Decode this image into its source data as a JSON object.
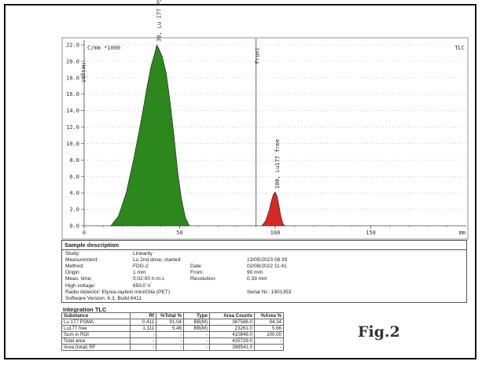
{
  "chart_data": {
    "type": "area",
    "y_unit_label": "C/mm *1000",
    "y_axis_label": "Height",
    "top_right_label": "TLC",
    "x_unit": "mm",
    "xlim": [
      0,
      200
    ],
    "ylim": [
      0,
      22
    ],
    "x_ticks": [
      0,
      50,
      100,
      150
    ],
    "y_ticks": [
      "0.0",
      "2.0",
      "4.0",
      "6.0",
      "8.0",
      "10.0",
      "12.0",
      "14.0",
      "16.0",
      "18.0",
      "20.0",
      "22.0"
    ],
    "front_marker": {
      "x": 90,
      "label": "Front"
    },
    "series": [
      {
        "name": "Lu 177 PSMA",
        "peak_label": "38, Lu 177 PSMA",
        "color": "#2e8b1e",
        "x": [
          14,
          18,
          22,
          26,
          30,
          33,
          35,
          37,
          38,
          39,
          41,
          43,
          45,
          47,
          49,
          51,
          53,
          55
        ],
        "y": [
          0.0,
          1.2,
          4.0,
          8.2,
          13.0,
          17.0,
          19.4,
          21.0,
          22.0,
          21.6,
          20.5,
          18.5,
          15.0,
          11.0,
          6.5,
          3.2,
          1.0,
          0.0
        ]
      },
      {
        "name": "Lu177 free",
        "peak_label": "100, Lu177 free",
        "color": "#e02828",
        "x": [
          93,
          95,
          97,
          98,
          99,
          100,
          101,
          102,
          103,
          104,
          105
        ],
        "y": [
          0.0,
          0.6,
          2.0,
          3.0,
          3.8,
          4.1,
          3.6,
          2.4,
          1.1,
          0.3,
          0.0
        ]
      }
    ]
  },
  "sample": {
    "title": "Sample description",
    "rows": [
      {
        "label": "Study:",
        "value": "Linearity",
        "label2": "",
        "value2": ""
      },
      {
        "label": "Measurement:",
        "value": "Lu 2nd dose, started:",
        "label2": "",
        "value2": "13/05/2023  08:39"
      },
      {
        "label": "Method:",
        "value": "FDG-2",
        "label2": "Date",
        "value2": "02/08/2022  11:41"
      },
      {
        "label": "Origin:",
        "value": "1 mm",
        "label2": "From:",
        "value2": "90 mm"
      },
      {
        "label": "Meas. time:",
        "value": "0:02:00 h:m:s",
        "label2": "Resolution:",
        "value2": "0.33 mm"
      },
      {
        "label": "High voltage:",
        "value": "650.0 V",
        "label2": "",
        "value2": ""
      },
      {
        "label": "Radio detector: Elysia-raytest mini/Gita (PET)",
        "value": "",
        "label2": "",
        "value2": "Serial Nr.: 1901353"
      },
      {
        "label": "Software Version: 6.3, Build 6411",
        "value": "",
        "label2": "",
        "value2": ""
      }
    ]
  },
  "integration": {
    "title": "Integration TLC",
    "headers": [
      "Substance",
      "Rf",
      "%Total %",
      "Type",
      "Area Counts",
      "%Area %"
    ],
    "rows": [
      [
        "Lu 177 PSMA",
        "0.411",
        "91.04",
        "BB(M)",
        "387588.0",
        "94.34"
      ],
      [
        "Lu177 free",
        "1.111",
        "5.46",
        "BB(M)",
        "23261.0",
        "5.66"
      ],
      [
        "Sum in ROI",
        "-",
        "-",
        "-",
        "410849.0",
        "100.00"
      ],
      [
        "Total area",
        "-",
        "-",
        "-",
        "425729.0",
        "-"
      ],
      [
        "Area (total) RF",
        "-",
        "-",
        "-",
        "399541.0",
        "-"
      ]
    ]
  },
  "figure_label": "Fig.2"
}
